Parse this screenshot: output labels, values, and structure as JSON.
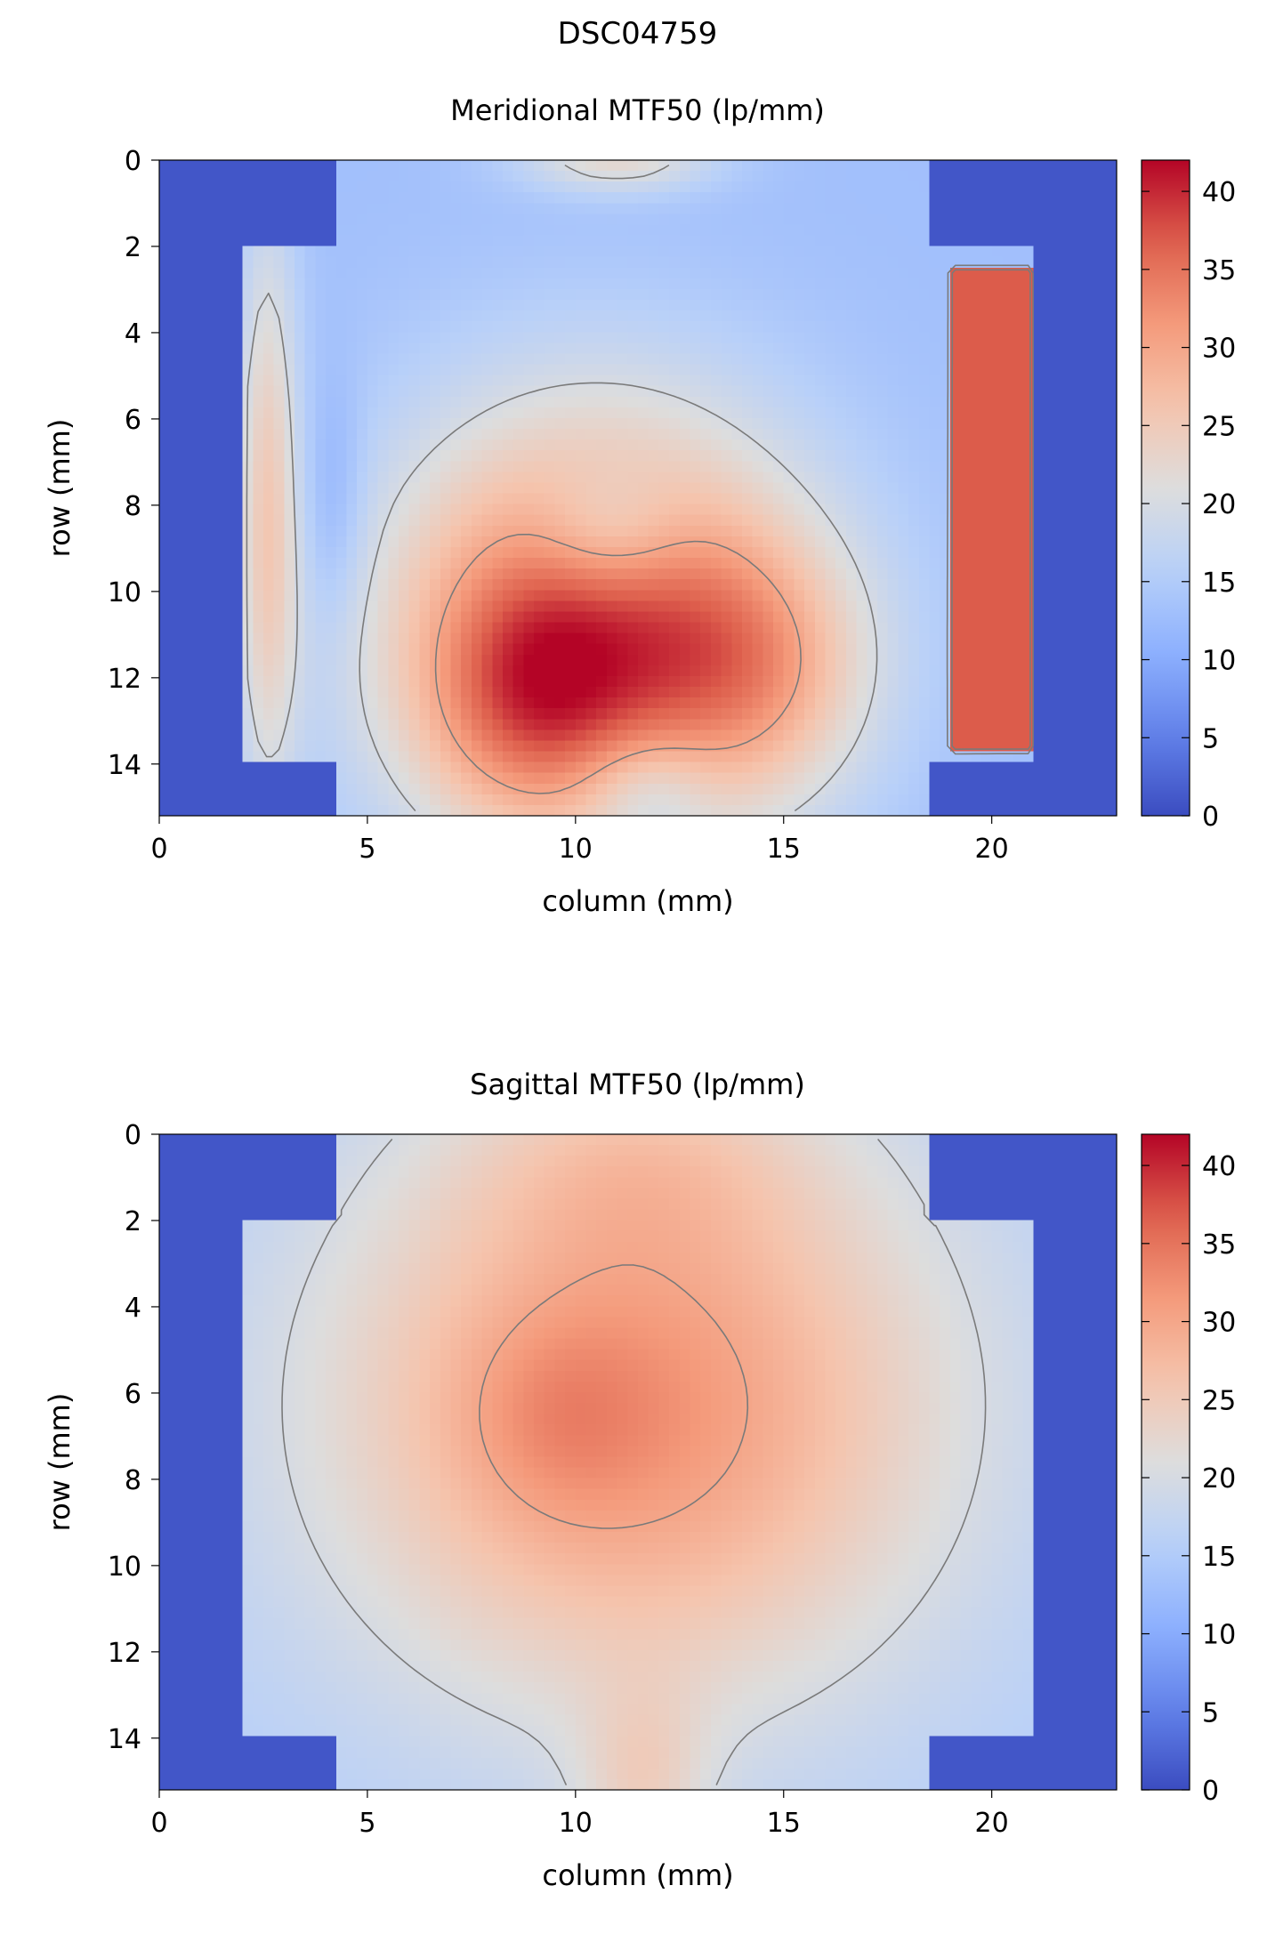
{
  "figure": {
    "suptitle": "DSC04759"
  },
  "chart_data": [
    {
      "type": "heatmap",
      "title": "Meridional MTF50 (lp/mm)",
      "xlabel": "column (mm)",
      "ylabel": "row (mm)",
      "xlim": [
        0,
        23
      ],
      "ylim": [
        15.2,
        0
      ],
      "xticks": [
        "0",
        "5",
        "10",
        "15",
        "20"
      ],
      "yticks": [
        "0",
        "2",
        "4",
        "6",
        "8",
        "10",
        "12",
        "14"
      ],
      "colorbar": {
        "min": 0,
        "max": 42,
        "ticks": [
          "0",
          "5",
          "10",
          "15",
          "20",
          "25",
          "30",
          "35",
          "40"
        ],
        "colormap": "coolwarm"
      },
      "contour_levels": [
        20,
        30
      ],
      "background_value": 1,
      "regions": [
        {
          "name": "field",
          "x": [
            2.1,
            20.9
          ],
          "y": [
            2.1,
            13.9
          ],
          "base": 13
        },
        {
          "name": "top-band",
          "x": [
            4.3,
            18.6
          ],
          "y": [
            0,
            2.1
          ],
          "base": 13
        },
        {
          "name": "bottom-band",
          "x": [
            4.3,
            18.6
          ],
          "y": [
            13.9,
            15.2
          ],
          "base": 13
        }
      ],
      "blobs": [
        {
          "x": 10.5,
          "y": 10.8,
          "sx": 3.6,
          "sy": 3.6,
          "amp": 24
        },
        {
          "x": 8.8,
          "y": 12.6,
          "sx": 1.8,
          "sy": 1.9,
          "amp": 9
        },
        {
          "x": 14.4,
          "y": 11.8,
          "sx": 1.9,
          "sy": 2.0,
          "amp": 9
        },
        {
          "x": 10.8,
          "y": 8.6,
          "sx": 1.3,
          "sy": 1.1,
          "amp": -7
        },
        {
          "x": 11.7,
          "y": 14.6,
          "sx": 1.1,
          "sy": 0.9,
          "amp": -6
        },
        {
          "x": 2.6,
          "y": 8.0,
          "sx": 0.55,
          "sy": 5.0,
          "amp": 11
        },
        {
          "x": 11.0,
          "y": 0.0,
          "sx": 1.7,
          "sy": 0.55,
          "amp": 9
        }
      ],
      "hot_strip": {
        "x": [
          18.9,
          20.9
        ],
        "y": [
          2.4,
          13.6
        ],
        "value": 37
      },
      "notch": {
        "x": 4.2,
        "y": 8.0,
        "sx": 0.55,
        "sy": 2.0,
        "amp": -4
      }
    },
    {
      "type": "heatmap",
      "title": "Sagittal MTF50 (lp/mm)",
      "xlabel": "column (mm)",
      "ylabel": "row (mm)",
      "xlim": [
        0,
        23
      ],
      "ylim": [
        15.2,
        0
      ],
      "xticks": [
        "0",
        "5",
        "10",
        "15",
        "20"
      ],
      "yticks": [
        "0",
        "2",
        "4",
        "6",
        "8",
        "10",
        "12",
        "14"
      ],
      "colorbar": {
        "min": 0,
        "max": 42,
        "ticks": [
          "0",
          "5",
          "10",
          "15",
          "20",
          "25",
          "30",
          "35",
          "40"
        ],
        "colormap": "coolwarm"
      },
      "contour_levels": [
        20,
        30
      ],
      "background_value": 1,
      "regions": [
        {
          "name": "field",
          "x": [
            2.1,
            20.9
          ],
          "y": [
            2.1,
            13.9
          ],
          "base": 15
        },
        {
          "name": "top-band",
          "x": [
            4.3,
            18.6
          ],
          "y": [
            0,
            2.1
          ],
          "base": 15
        },
        {
          "name": "bottom-band",
          "x": [
            4.3,
            18.6
          ],
          "y": [
            13.9,
            15.2
          ],
          "base": 15
        }
      ],
      "blobs": [
        {
          "x": 11.4,
          "y": 6.3,
          "sx": 5.4,
          "sy": 5.0,
          "amp": 17
        },
        {
          "x": 9.5,
          "y": 6.6,
          "sx": 1.6,
          "sy": 1.6,
          "amp": 3
        },
        {
          "x": 11.5,
          "y": 0.5,
          "sx": 3.0,
          "sy": 1.6,
          "amp": 4
        },
        {
          "x": 11.6,
          "y": 15.2,
          "sx": 1.1,
          "sy": 1.6,
          "amp": 6
        }
      ]
    }
  ]
}
